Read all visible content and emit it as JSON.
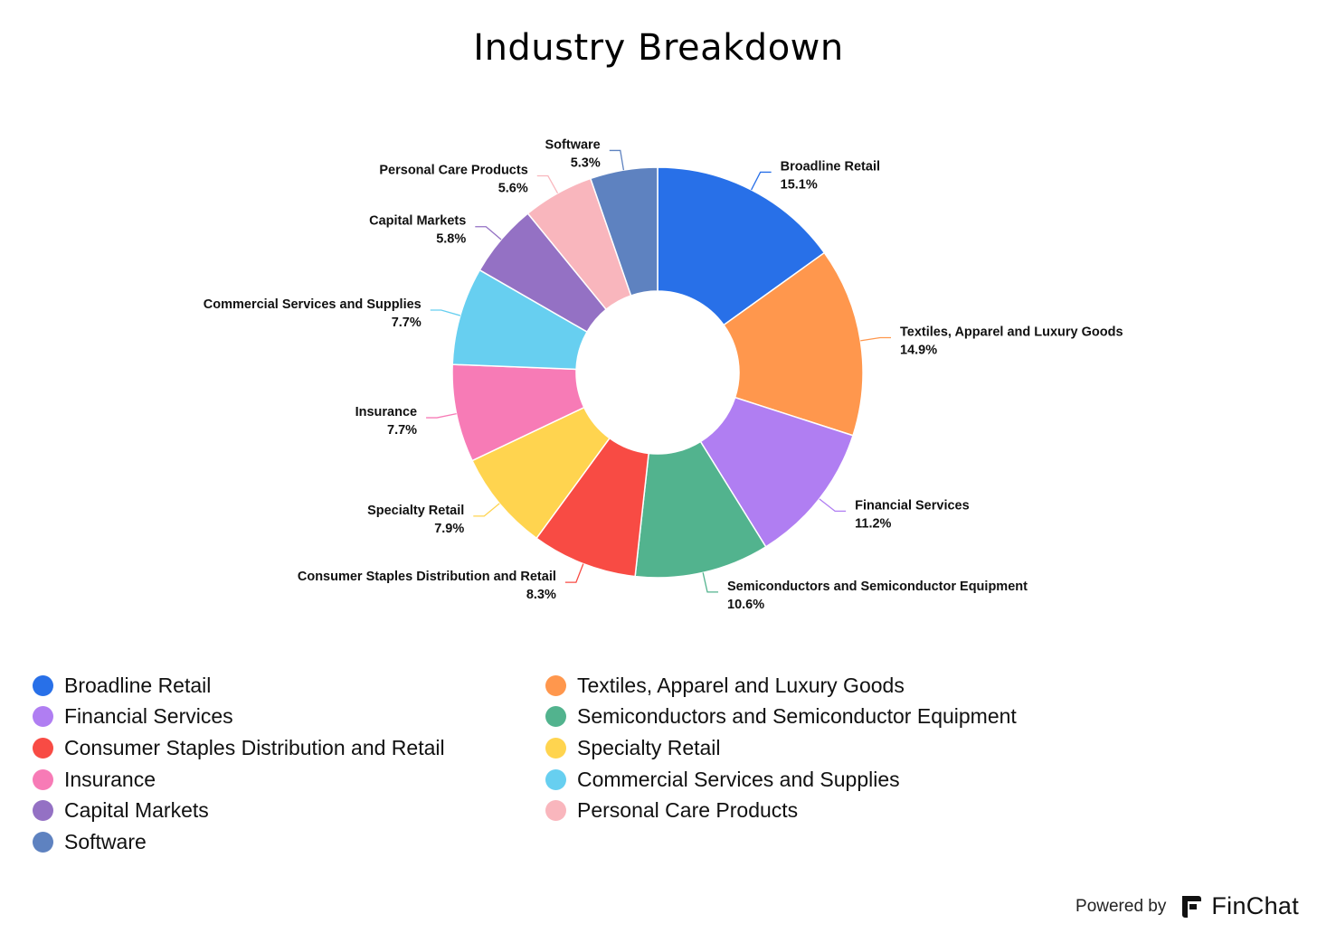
{
  "chart_data": {
    "type": "pie",
    "title": "Industry Breakdown",
    "donut": true,
    "unit": "%",
    "slices": [
      {
        "name": "Broadline Retail",
        "value": 15.1,
        "label": "15.1%",
        "color": "#2870E8"
      },
      {
        "name": "Textiles, Apparel and Luxury Goods",
        "value": 14.9,
        "label": "14.9%",
        "color": "#FF974D"
      },
      {
        "name": "Financial Services",
        "value": 11.2,
        "label": "11.2%",
        "color": "#B07EF2"
      },
      {
        "name": "Semiconductors and Semiconductor Equipment",
        "value": 10.6,
        "label": "10.6%",
        "color": "#52B38E"
      },
      {
        "name": "Consumer Staples Distribution and Retail",
        "value": 8.3,
        "label": "8.3%",
        "color": "#F84B44"
      },
      {
        "name": "Specialty Retail",
        "value": 7.9,
        "label": "7.9%",
        "color": "#FFD44F"
      },
      {
        "name": "Insurance",
        "value": 7.7,
        "label": "7.7%",
        "color": "#F77BB6"
      },
      {
        "name": "Commercial Services and Supplies",
        "value": 7.7,
        "label": "7.7%",
        "color": "#67CFF0"
      },
      {
        "name": "Capital Markets",
        "value": 5.8,
        "label": "5.8%",
        "color": "#9471C4"
      },
      {
        "name": "Personal Care Products",
        "value": 5.6,
        "label": "5.6%",
        "color": "#F9B6BD"
      },
      {
        "name": "Software",
        "value": 5.3,
        "label": "5.3%",
        "color": "#5E82C0"
      }
    ],
    "legend": {
      "position": "bottom",
      "items": [
        "Broadline Retail",
        "Textiles, Apparel and Luxury Goods",
        "Financial Services",
        "Semiconductors and Semiconductor Equipment",
        "Consumer Staples Distribution and Retail",
        "Specialty Retail",
        "Insurance",
        "Commercial Services and Supplies",
        "Capital Markets",
        "Personal Care Products",
        "Software"
      ]
    }
  },
  "footer": {
    "powered_by": "Powered by",
    "brand": "FinChat",
    "logo_icon": "finchat-logo-icon"
  }
}
